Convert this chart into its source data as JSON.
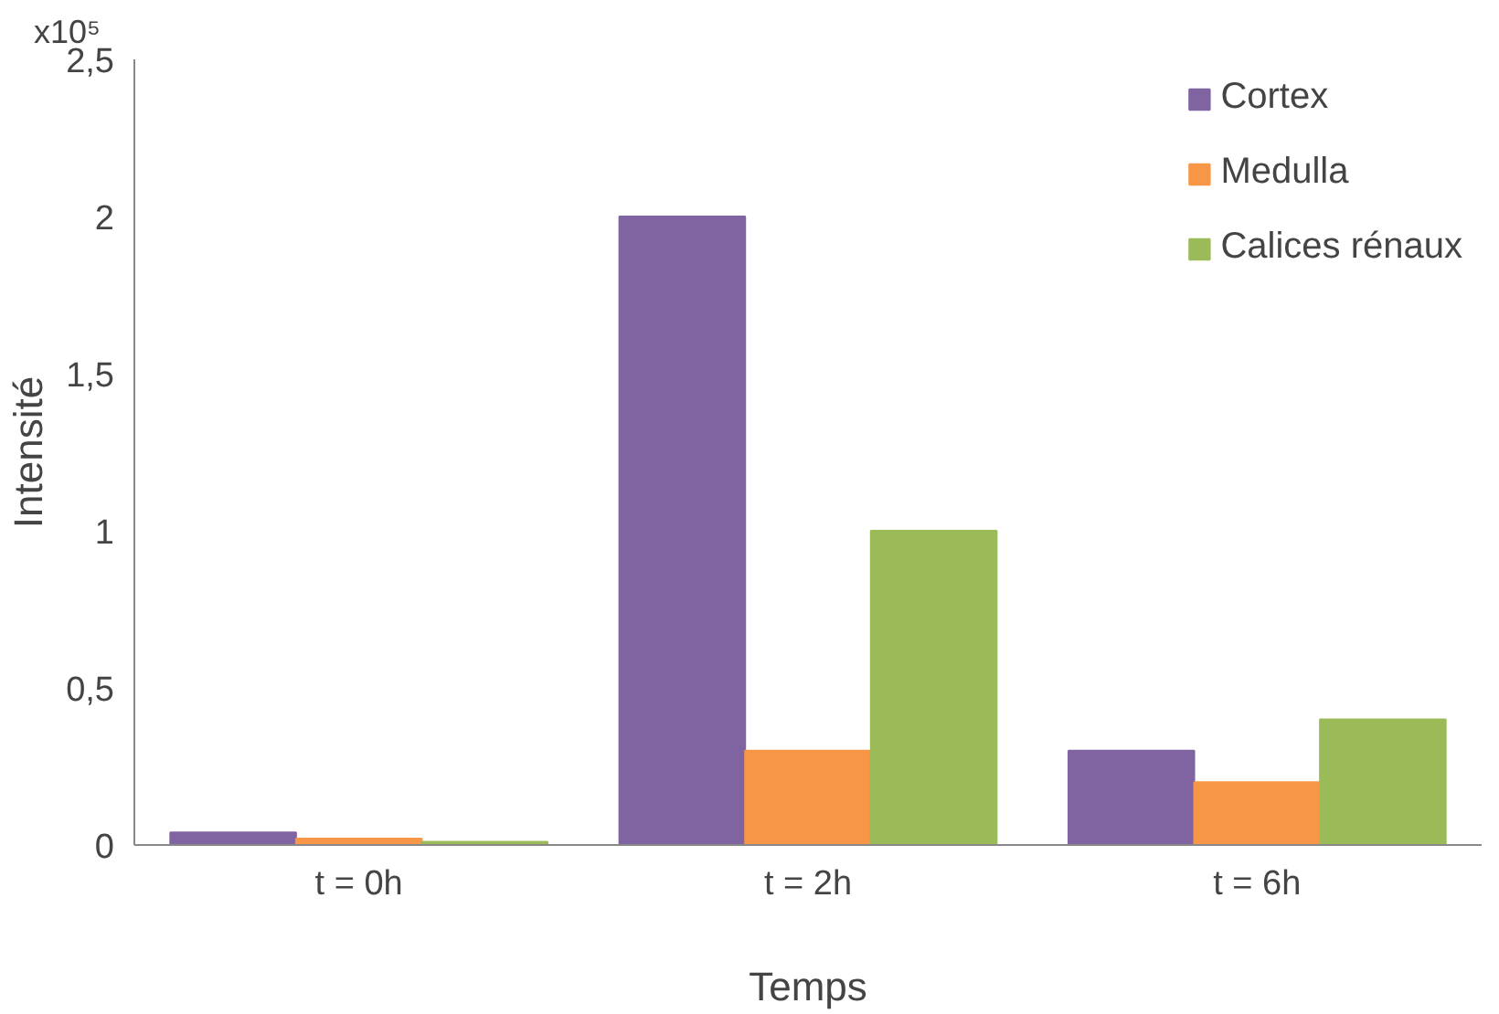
{
  "chart_data": {
    "type": "bar",
    "xlabel": "Temps",
    "ylabel": "Intensité",
    "annotations": [
      "x10⁵"
    ],
    "categories": [
      "t = 0h",
      "t = 2h",
      "t = 6h"
    ],
    "series": [
      {
        "name": "Cortex",
        "color": "#8064a2",
        "values": [
          0.04,
          2.0,
          0.3
        ]
      },
      {
        "name": "Medulla",
        "color": "#f79646",
        "values": [
          0.02,
          0.3,
          0.2
        ]
      },
      {
        "name": "Calices rénaux",
        "color": "#9bbb59",
        "values": [
          0.01,
          1.0,
          0.4
        ]
      }
    ],
    "ylim": [
      0,
      2.5
    ],
    "yticks": [
      0,
      {
        "value": 0.5,
        "label": "0,5"
      },
      1,
      {
        "value": 1.5,
        "label": "1,5"
      },
      2,
      {
        "value": 2.5,
        "label": "2,5"
      }
    ],
    "grid": false,
    "legend": "top right"
  }
}
